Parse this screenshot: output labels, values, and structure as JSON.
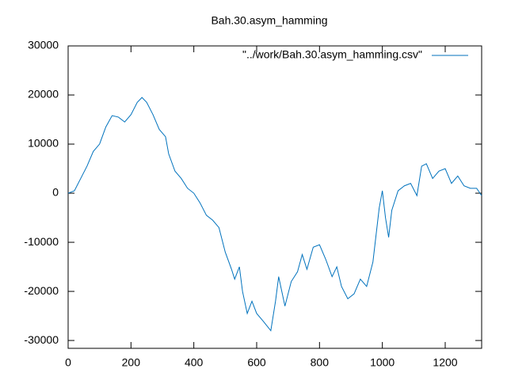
{
  "chart_data": {
    "type": "line",
    "title": "Bah.30.asym_hamming",
    "x": [
      0,
      20,
      40,
      60,
      80,
      100,
      120,
      140,
      160,
      180,
      200,
      220,
      235,
      250,
      270,
      290,
      310,
      320,
      340,
      360,
      380,
      400,
      420,
      440,
      460,
      480,
      500,
      520,
      530,
      545,
      555,
      570,
      585,
      600,
      620,
      645,
      660,
      670,
      690,
      710,
      730,
      745,
      760,
      780,
      800,
      820,
      840,
      855,
      870,
      890,
      910,
      930,
      950,
      970,
      990,
      1000,
      1010,
      1020,
      1030,
      1050,
      1070,
      1090,
      1110,
      1125,
      1140,
      1160,
      1180,
      1200,
      1220,
      1240,
      1260,
      1280,
      1300,
      1316
    ],
    "series": [
      {
        "name": "\"../work/Bah.30.asym_hamming.csv\"",
        "color": "#0072bd",
        "values": [
          0,
          500,
          3000,
          5500,
          8500,
          10000,
          13500,
          15800,
          15500,
          14500,
          16000,
          18500,
          19500,
          18500,
          16000,
          13000,
          11500,
          8000,
          4500,
          3000,
          1000,
          0,
          -2000,
          -4500,
          -5500,
          -7000,
          -12000,
          -15500,
          -17500,
          -15000,
          -20000,
          -24500,
          -22000,
          -24500,
          -26000,
          -28000,
          -22000,
          -17000,
          -23000,
          -18000,
          -16000,
          -12500,
          -15500,
          -11000,
          -10500,
          -13500,
          -17000,
          -15000,
          -19000,
          -21500,
          -20500,
          -17500,
          -19000,
          -14000,
          -3000,
          500,
          -5000,
          -9000,
          -3500,
          500,
          1500,
          2000,
          -500,
          5500,
          6000,
          3000,
          4500,
          5000,
          2000,
          3500,
          1500,
          1000,
          1000,
          -500
        ]
      }
    ],
    "xlim": [
      0,
      1316
    ],
    "xticks": [
      0,
      200,
      400,
      600,
      800,
      1000,
      1200
    ],
    "ylim": [
      -31600,
      30000
    ],
    "yticks": [
      -30000,
      -20000,
      -10000,
      0,
      10000,
      20000,
      30000
    ],
    "legend": "top-right"
  }
}
